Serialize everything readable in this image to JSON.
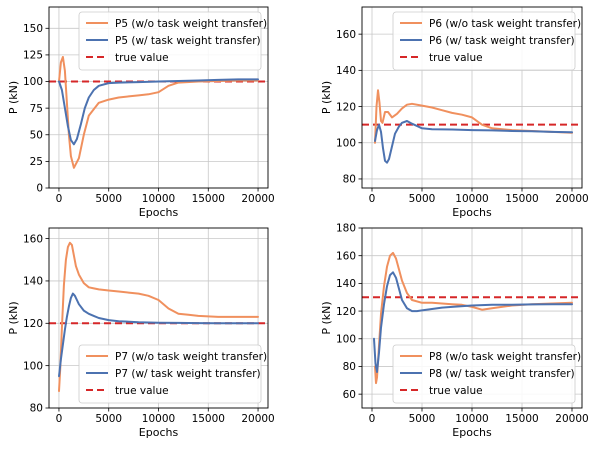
{
  "colors": {
    "without_transfer": "#F0905E",
    "with_transfer": "#4C72B0",
    "true_value": "#D62728",
    "grid": "#C8C8C8"
  },
  "chart_data": [
    {
      "type": "line",
      "xlabel": "Epochs",
      "ylabel": "P (kN)",
      "xlim": [
        -1000,
        21000
      ],
      "ylim": [
        0,
        170
      ],
      "xticks": [
        0,
        5000,
        10000,
        15000,
        20000
      ],
      "yticks": [
        0,
        25,
        50,
        75,
        100,
        125,
        150
      ],
      "grid": true,
      "legend_position": "top-right",
      "true_value": 100,
      "series": [
        {
          "name": "P5 (w/o task weight transfer)",
          "x": [
            0,
            200,
            400,
            600,
            800,
            1000,
            1200,
            1500,
            2000,
            2500,
            3000,
            4000,
            5000,
            6000,
            7000,
            8000,
            9000,
            10000,
            11000,
            12000,
            14000,
            16000,
            18000,
            20000
          ],
          "values": [
            100,
            118,
            123,
            110,
            80,
            50,
            30,
            19,
            28,
            50,
            68,
            80,
            83,
            85,
            86,
            87,
            88,
            90,
            96,
            99,
            100,
            100.5,
            101,
            101
          ]
        },
        {
          "name": "P5 (w/ task weight transfer)",
          "x": [
            0,
            300,
            600,
            900,
            1200,
            1500,
            1800,
            2200,
            2600,
            3000,
            3500,
            4000,
            5000,
            6000,
            8000,
            10000,
            12000,
            14000,
            16000,
            18000,
            20000
          ],
          "values": [
            100,
            92,
            75,
            58,
            45,
            41,
            46,
            60,
            75,
            85,
            92,
            96,
            98.5,
            99,
            99.5,
            100,
            100.5,
            101,
            101.5,
            102,
            102
          ]
        }
      ],
      "legend": [
        "P5 (w/o task weight transfer)",
        "P5 (w/ task weight transfer)",
        "true value"
      ]
    },
    {
      "type": "line",
      "xlabel": "Epochs",
      "ylabel": "P (kN)",
      "xlim": [
        -1000,
        21000
      ],
      "ylim": [
        75,
        175
      ],
      "xticks": [
        0,
        5000,
        10000,
        15000,
        20000
      ],
      "yticks": [
        80,
        100,
        120,
        140,
        160
      ],
      "grid": true,
      "legend_position": "top-right",
      "true_value": 110,
      "series": [
        {
          "name": "P6 (w/o task weight transfer)",
          "x": [
            300,
            450,
            600,
            750,
            900,
            1050,
            1300,
            1600,
            2000,
            2500,
            3000,
            3500,
            4000,
            5000,
            6000,
            7000,
            8000,
            9000,
            10000,
            11000,
            12000,
            14000,
            16000,
            18000,
            20000
          ],
          "values": [
            100,
            120,
            129,
            122,
            112,
            111,
            117,
            117,
            114,
            116,
            119,
            121,
            121.5,
            120.5,
            119.5,
            118,
            116.5,
            115.5,
            114,
            110,
            108,
            107,
            106.5,
            106,
            105.5
          ]
        },
        {
          "name": "P6 (w/ task weight transfer)",
          "x": [
            300,
            500,
            700,
            900,
            1100,
            1300,
            1500,
            1700,
            2000,
            2300,
            2700,
            3000,
            3500,
            4000,
            5000,
            6000,
            8000,
            10000,
            12000,
            14000,
            16000,
            18000,
            20000
          ],
          "values": [
            101,
            107,
            110,
            106,
            97,
            90,
            89,
            91,
            98,
            105,
            109,
            111,
            112,
            110.5,
            108,
            107.5,
            107.3,
            107,
            106.8,
            106.5,
            106.3,
            106,
            105.8
          ]
        }
      ],
      "legend": [
        "P6 (w/o task weight transfer)",
        "P6 (w/ task weight transfer)",
        "true value"
      ]
    },
    {
      "type": "line",
      "xlabel": "Epochs",
      "ylabel": "P (kN)",
      "xlim": [
        -1000,
        21000
      ],
      "ylim": [
        80,
        165
      ],
      "xticks": [
        0,
        5000,
        10000,
        15000,
        20000
      ],
      "yticks": [
        80,
        100,
        120,
        140,
        160
      ],
      "grid": true,
      "legend_position": "bottom-right",
      "true_value": 120,
      "series": [
        {
          "name": "P7 (w/o task weight transfer)",
          "x": [
            0,
            150,
            300,
            500,
            700,
            900,
            1100,
            1300,
            1500,
            1700,
            2000,
            2500,
            3000,
            3500,
            4000,
            5000,
            6000,
            7000,
            8000,
            9000,
            10000,
            11000,
            12000,
            13000,
            14000,
            16000,
            18000,
            20000
          ],
          "values": [
            88,
            100,
            118,
            138,
            150,
            156,
            158,
            157,
            152,
            147,
            143,
            139,
            137,
            136.5,
            136,
            135.5,
            135,
            134.5,
            134,
            133,
            131,
            127,
            124.5,
            124,
            123.5,
            123,
            123,
            123
          ]
        },
        {
          "name": "P7 (w/ task weight transfer)",
          "x": [
            0,
            200,
            400,
            600,
            800,
            1000,
            1200,
            1400,
            1600,
            1800,
            2000,
            2500,
            3000,
            3500,
            4000,
            5000,
            6000,
            8000,
            10000,
            12000,
            14000,
            16000,
            18000,
            20000
          ],
          "values": [
            95,
            103,
            110,
            117,
            123,
            128,
            132,
            134,
            133,
            131,
            129,
            126,
            124.5,
            123.5,
            122.5,
            121.5,
            121,
            120.5,
            120.3,
            120.2,
            120.1,
            120,
            120,
            120
          ]
        }
      ],
      "legend": [
        "P7 (w/o task weight transfer)",
        "P7 (w/ task weight transfer)",
        "true value"
      ]
    },
    {
      "type": "line",
      "xlabel": "Epochs",
      "ylabel": "P (kN)",
      "xlim": [
        -1000,
        21000
      ],
      "ylim": [
        50,
        180
      ],
      "xticks": [
        0,
        5000,
        10000,
        15000,
        20000
      ],
      "yticks": [
        60,
        80,
        100,
        120,
        140,
        160,
        180
      ],
      "grid": true,
      "legend_position": "bottom-right",
      "true_value": 130,
      "series": [
        {
          "name": "P8 (w/o task weight transfer)",
          "x": [
            300,
            400,
            500,
            700,
            900,
            1200,
            1500,
            1800,
            2100,
            2400,
            2700,
            3000,
            3500,
            4000,
            5000,
            6000,
            7000,
            8000,
            9000,
            10000,
            11000,
            12000,
            14000,
            16000,
            18000,
            20000
          ],
          "values": [
            80,
            68,
            72,
            95,
            118,
            138,
            152,
            160,
            162,
            158,
            150,
            142,
            133,
            128,
            126,
            126,
            125.5,
            125,
            124.5,
            123,
            121,
            122,
            124,
            125,
            125.5,
            126
          ]
        },
        {
          "name": "P8 (w/ task weight transfer)",
          "x": [
            200,
            350,
            500,
            700,
            900,
            1200,
            1500,
            1800,
            2100,
            2400,
            2700,
            3000,
            3500,
            4000,
            4500,
            5000,
            6000,
            7000,
            8000,
            10000,
            12000,
            14000,
            16000,
            18000,
            20000
          ],
          "values": [
            100,
            82,
            76,
            90,
            108,
            125,
            138,
            146,
            148,
            144,
            136,
            128,
            122,
            120,
            120,
            120.5,
            121.5,
            122.5,
            123,
            124,
            124.5,
            124.5,
            124.8,
            125,
            125
          ]
        }
      ],
      "legend": [
        "P8 (w/o task weight transfer)",
        "P8 (w/ task weight transfer)",
        "true value"
      ]
    }
  ]
}
